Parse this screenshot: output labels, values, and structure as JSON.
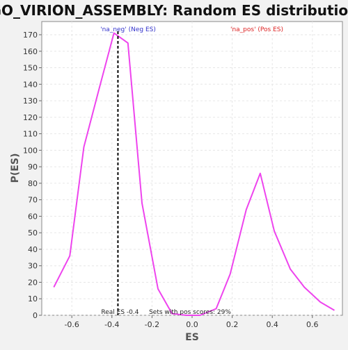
{
  "chart_data": {
    "type": "line",
    "title": "GO_VIRION_ASSEMBLY: Random ES distribution",
    "xlabel": "ES",
    "ylabel": "P(ES)",
    "xlim": [
      -0.75,
      0.75
    ],
    "ylim": [
      0,
      178
    ],
    "x_ticks": [
      -0.6,
      -0.4,
      -0.2,
      0.0,
      0.2,
      0.4,
      0.6
    ],
    "x_tick_labels": [
      "-0.6",
      "-0.4",
      "-0.2",
      "0.0",
      "0.2",
      "0.4",
      "0.6"
    ],
    "y_ticks": [
      0,
      10,
      20,
      30,
      40,
      50,
      60,
      70,
      80,
      90,
      100,
      110,
      120,
      130,
      140,
      150,
      160,
      170
    ],
    "grid": true,
    "series": [
      {
        "color": "#ee44ee",
        "x": [
          -0.69,
          -0.61,
          -0.54,
          -0.46,
          -0.39,
          -0.32,
          -0.25,
          -0.17,
          -0.1,
          -0.03,
          0.04,
          0.12,
          0.19,
          0.27,
          0.34,
          0.41,
          0.49,
          0.56,
          0.64,
          0.71
        ],
        "y": [
          17,
          36,
          102,
          139,
          171,
          165,
          68,
          16,
          1,
          0,
          0,
          4,
          25,
          64,
          86,
          51,
          28,
          17,
          8,
          3
        ]
      }
    ],
    "real_es": {
      "value": -0.37,
      "label": "Real ES -0.4",
      "color": "#000000"
    },
    "annotations": {
      "neg_label": "'na_neg' (Neg ES)",
      "neg_color": "#3333cc",
      "pos_label": "'na_pos' (Pos ES)",
      "pos_color": "#dd2222",
      "pos_fraction_text": "Sets with pos scores: 29%"
    }
  }
}
